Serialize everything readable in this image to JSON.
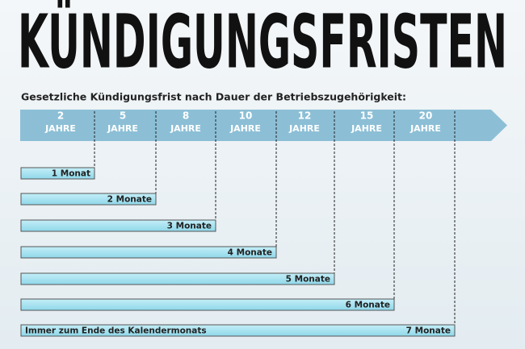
{
  "title": "KÜNDIGUNGSFRISTEN",
  "subtitle": "Gesetzliche Kündigungsfrist nach Dauer der Betriebszugehörigkeit:",
  "periods": [
    {
      "number": "2",
      "unit": "JAHRE"
    },
    {
      "number": "5",
      "unit": "JAHRE"
    },
    {
      "number": "8",
      "unit": "JAHRE"
    },
    {
      "number": "10",
      "unit": "JAHRE"
    },
    {
      "number": "12",
      "unit": "JAHRE"
    },
    {
      "number": "15",
      "unit": "JAHRE"
    },
    {
      "number": "20",
      "unit": "JAHRE"
    }
  ],
  "notice": [
    "1 Monat",
    "2 Monate",
    "3 Monate",
    "4 Monate",
    "5 Monate",
    "6 Monate",
    "7 Monate"
  ],
  "note": "Immer zum Ende des Kalendermonats"
}
